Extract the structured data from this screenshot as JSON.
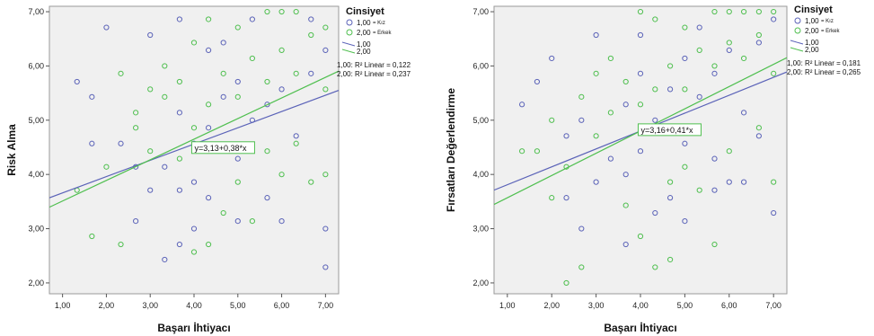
{
  "colors": {
    "kiz": "#5b63b8",
    "erkek": "#4fbf4f",
    "plot_bg": "#f0f0f0",
    "frame": "#9a9a9a"
  },
  "chart_data": [
    {
      "type": "scatter",
      "title": "",
      "xlabel": "Başarı İhtiyacı",
      "ylabel": "Risk Alma",
      "xlim": [
        0.7,
        7.3
      ],
      "ylim": [
        1.8,
        7.1
      ],
      "x_ticks": [
        "1,00",
        "2,00",
        "3,00",
        "4,00",
        "5,00",
        "6,00",
        "7,00"
      ],
      "y_ticks": [
        "2,00",
        "3,00",
        "4,00",
        "5,00",
        "6,00",
        "7,00"
      ],
      "legend": {
        "title": "Cinsiyet",
        "entries": [
          {
            "code": "1,00",
            "label": "= Kız"
          },
          {
            "code": "2,00",
            "label": "= Erkek"
          }
        ],
        "line_entries": [
          "1,00",
          "2,00"
        ],
        "r2": [
          "1,00: R² Linear = 0,122",
          "2,00: R² Linear = 0,237"
        ]
      },
      "equation_label": "y=3,13+0,38*x",
      "equation_anchor": [
        4.05,
        4.47
      ],
      "fit_lines": [
        {
          "name": "1,00",
          "intercept": 3.36,
          "slope": 0.3
        },
        {
          "name": "2,00",
          "intercept": 3.13,
          "slope": 0.38
        }
      ],
      "series": [
        {
          "name": "1,00",
          "points": [
            [
              1.33,
              5.71
            ],
            [
              1.67,
              5.43
            ],
            [
              1.67,
              4.57
            ],
            [
              2.0,
              6.71
            ],
            [
              2.33,
              4.57
            ],
            [
              2.67,
              3.14
            ],
            [
              3.0,
              6.57
            ],
            [
              3.33,
              2.43
            ],
            [
              3.67,
              6.86
            ],
            [
              3.67,
              2.71
            ],
            [
              4.0,
              3.0
            ],
            [
              4.33,
              6.29
            ],
            [
              4.67,
              6.43
            ],
            [
              5.0,
              3.14
            ],
            [
              5.33,
              6.86
            ],
            [
              5.67,
              3.57
            ],
            [
              6.0,
              3.14
            ],
            [
              6.67,
              6.86
            ],
            [
              7.0,
              3.0
            ],
            [
              7.0,
              2.29
            ],
            [
              7.0,
              6.29
            ],
            [
              3.33,
              4.14
            ],
            [
              3.67,
              5.14
            ],
            [
              4.0,
              4.57
            ],
            [
              4.33,
              4.86
            ],
            [
              4.67,
              5.43
            ],
            [
              5.0,
              5.71
            ],
            [
              5.33,
              5.0
            ],
            [
              5.67,
              5.29
            ],
            [
              6.0,
              5.57
            ],
            [
              6.33,
              4.71
            ],
            [
              6.67,
              5.86
            ],
            [
              4.0,
              3.86
            ],
            [
              3.67,
              3.71
            ],
            [
              4.33,
              3.57
            ],
            [
              5.0,
              4.29
            ],
            [
              2.67,
              4.14
            ],
            [
              3.0,
              3.71
            ]
          ]
        },
        {
          "name": "2,00",
          "points": [
            [
              1.33,
              3.71
            ],
            [
              1.67,
              2.86
            ],
            [
              2.0,
              4.14
            ],
            [
              2.33,
              2.71
            ],
            [
              2.33,
              5.86
            ],
            [
              2.67,
              4.86
            ],
            [
              3.0,
              5.57
            ],
            [
              3.33,
              6.0
            ],
            [
              3.67,
              4.29
            ],
            [
              4.0,
              2.57
            ],
            [
              4.0,
              6.43
            ],
            [
              4.33,
              2.71
            ],
            [
              4.33,
              6.86
            ],
            [
              4.67,
              3.29
            ],
            [
              5.0,
              6.71
            ],
            [
              5.33,
              3.14
            ],
            [
              5.67,
              7.0
            ],
            [
              6.0,
              7.0
            ],
            [
              6.33,
              7.0
            ],
            [
              6.67,
              3.86
            ],
            [
              7.0,
              4.0
            ],
            [
              7.0,
              6.71
            ],
            [
              2.67,
              5.14
            ],
            [
              3.0,
              4.43
            ],
            [
              3.33,
              5.43
            ],
            [
              3.67,
              5.71
            ],
            [
              4.0,
              4.86
            ],
            [
              4.33,
              5.29
            ],
            [
              4.67,
              5.86
            ],
            [
              5.0,
              5.43
            ],
            [
              5.33,
              6.14
            ],
            [
              5.67,
              5.71
            ],
            [
              6.0,
              6.29
            ],
            [
              6.33,
              5.86
            ],
            [
              6.67,
              6.57
            ],
            [
              7.0,
              5.57
            ],
            [
              5.0,
              3.86
            ],
            [
              5.67,
              4.43
            ],
            [
              6.0,
              4.0
            ],
            [
              6.33,
              4.57
            ]
          ]
        }
      ]
    },
    {
      "type": "scatter",
      "title": "",
      "xlabel": "Başarı İhtiyacı",
      "ylabel": "Fırsatları Değerlendirme",
      "xlim": [
        0.7,
        7.3
      ],
      "ylim": [
        1.8,
        7.1
      ],
      "x_ticks": [
        "1,00",
        "2,00",
        "3,00",
        "4,00",
        "5,00",
        "6,00",
        "7,00"
      ],
      "y_ticks": [
        "2,00",
        "3,00",
        "4,00",
        "5,00",
        "6,00",
        "7,00"
      ],
      "legend": {
        "title": "Cinsiyet",
        "entries": [
          {
            "code": "1,00",
            "label": "= Kız"
          },
          {
            "code": "2,00",
            "label": "= Erkek"
          }
        ],
        "line_entries": [
          "1,00",
          "2,00"
        ],
        "r2": [
          "1,00: R² Linear = 0,181",
          "2,00: R² Linear = 0,265"
        ]
      },
      "equation_label": "y=3,16+0,41*x",
      "equation_anchor": [
        4.05,
        4.8
      ],
      "fit_lines": [
        {
          "name": "1,00",
          "intercept": 3.48,
          "slope": 0.33
        },
        {
          "name": "2,00",
          "intercept": 3.16,
          "slope": 0.41
        }
      ],
      "series": [
        {
          "name": "1,00",
          "points": [
            [
              1.33,
              5.29
            ],
            [
              1.67,
              5.71
            ],
            [
              2.0,
              6.14
            ],
            [
              2.33,
              4.71
            ],
            [
              2.33,
              3.57
            ],
            [
              2.67,
              3.0
            ],
            [
              3.0,
              6.57
            ],
            [
              3.33,
              4.29
            ],
            [
              3.67,
              2.71
            ],
            [
              4.0,
              6.57
            ],
            [
              4.33,
              3.29
            ],
            [
              4.67,
              3.57
            ],
            [
              5.0,
              3.14
            ],
            [
              5.33,
              6.71
            ],
            [
              5.67,
              3.71
            ],
            [
              6.0,
              3.86
            ],
            [
              6.33,
              3.86
            ],
            [
              6.67,
              6.43
            ],
            [
              7.0,
              3.29
            ],
            [
              7.0,
              6.86
            ],
            [
              3.67,
              5.29
            ],
            [
              4.0,
              5.86
            ],
            [
              4.33,
              5.0
            ],
            [
              4.67,
              5.57
            ],
            [
              5.0,
              6.14
            ],
            [
              5.33,
              5.43
            ],
            [
              5.67,
              5.86
            ],
            [
              6.0,
              6.29
            ],
            [
              6.33,
              5.14
            ],
            [
              6.67,
              4.71
            ],
            [
              4.0,
              4.43
            ],
            [
              3.67,
              4.0
            ],
            [
              5.0,
              4.57
            ],
            [
              2.67,
              5.0
            ],
            [
              3.0,
              3.86
            ],
            [
              5.67,
              4.29
            ]
          ]
        },
        {
          "name": "2,00",
          "points": [
            [
              1.33,
              4.43
            ],
            [
              1.67,
              4.43
            ],
            [
              2.0,
              5.0
            ],
            [
              2.33,
              2.0
            ],
            [
              2.67,
              2.29
            ],
            [
              2.67,
              5.43
            ],
            [
              3.0,
              5.86
            ],
            [
              3.33,
              6.14
            ],
            [
              3.67,
              3.43
            ],
            [
              4.0,
              2.86
            ],
            [
              4.0,
              7.0
            ],
            [
              4.33,
              2.29
            ],
            [
              4.33,
              6.86
            ],
            [
              4.67,
              2.43
            ],
            [
              5.0,
              6.71
            ],
            [
              5.33,
              3.71
            ],
            [
              5.67,
              2.71
            ],
            [
              5.67,
              7.0
            ],
            [
              6.0,
              7.0
            ],
            [
              6.33,
              7.0
            ],
            [
              6.67,
              7.0
            ],
            [
              7.0,
              7.0
            ],
            [
              7.0,
              3.86
            ],
            [
              2.33,
              4.14
            ],
            [
              3.0,
              4.71
            ],
            [
              3.33,
              5.14
            ],
            [
              3.67,
              5.71
            ],
            [
              4.0,
              5.29
            ],
            [
              4.33,
              5.57
            ],
            [
              4.67,
              6.0
            ],
            [
              5.0,
              5.57
            ],
            [
              5.33,
              6.29
            ],
            [
              5.67,
              6.0
            ],
            [
              6.0,
              6.43
            ],
            [
              6.33,
              6.14
            ],
            [
              6.67,
              6.57
            ],
            [
              7.0,
              5.86
            ],
            [
              5.0,
              4.14
            ],
            [
              6.0,
              4.43
            ],
            [
              6.67,
              4.86
            ],
            [
              4.67,
              3.86
            ],
            [
              2.0,
              3.57
            ]
          ]
        }
      ]
    }
  ]
}
